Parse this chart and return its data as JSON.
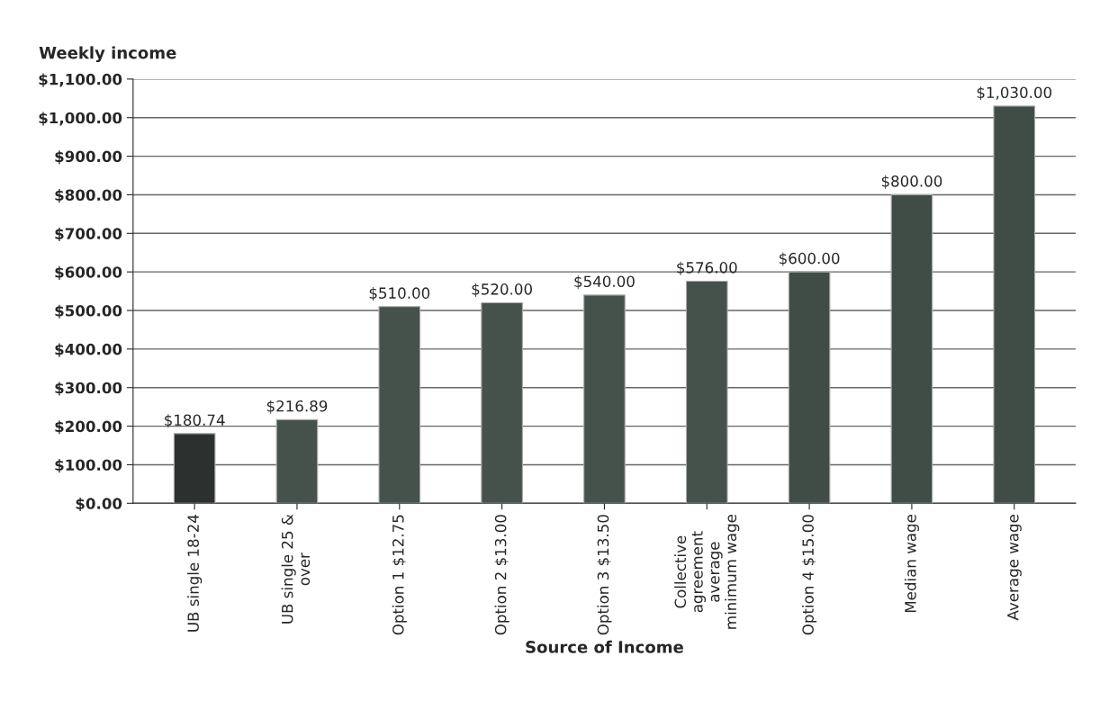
{
  "chart_data": {
    "type": "bar",
    "ylabel": "Weekly income",
    "xlabel": "Source of Income",
    "categories": [
      "UB single 18-24",
      "UB single 25 &\nover",
      "Option 1 $12.75",
      "Option 2 $13.00",
      "Option 3 $13.50",
      "Collective\nagreement\naverage\nminimum wage",
      "Option 4 $15.00",
      "Median wage",
      "Average wage"
    ],
    "values": [
      180.74,
      216.89,
      510,
      520,
      540,
      576,
      600,
      800,
      1030
    ],
    "value_labels": [
      "$180.74",
      "$216.89",
      "$510.00",
      "$520.00",
      "$540.00",
      "$576.00",
      "$600.00",
      "$800.00",
      "$1,030.00"
    ],
    "colors": [
      "#2c302e",
      "#44524b",
      "#44524b",
      "#44524b",
      "#44524b",
      "#44524b",
      "#3f4d46",
      "#3f4d46",
      "#3f4d46"
    ],
    "ylim": [
      0,
      1100
    ],
    "yticks": [
      {
        "value": 0,
        "label": "$0.00"
      },
      {
        "value": 100,
        "label": "$100.00"
      },
      {
        "value": 200,
        "label": "$200.00"
      },
      {
        "value": 300,
        "label": "$300.00"
      },
      {
        "value": 400,
        "label": "$400.00"
      },
      {
        "value": 500,
        "label": "$500.00"
      },
      {
        "value": 600,
        "label": "$600.00"
      },
      {
        "value": 700,
        "label": "$700.00"
      },
      {
        "value": 800,
        "label": "$800.00"
      },
      {
        "value": 900,
        "label": "$900.00"
      },
      {
        "value": 1000,
        "label": "$1,000.00"
      },
      {
        "value": 1100,
        "label": "$1,100.00"
      }
    ],
    "grid": "y",
    "legend": false
  }
}
